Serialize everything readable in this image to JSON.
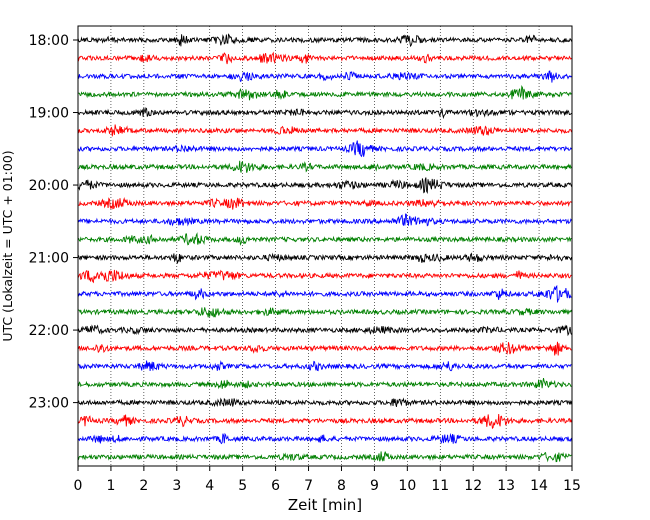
{
  "chart_data": {
    "type": "line",
    "chart_kind": "helicorder",
    "xlabel": "Zeit  [min]",
    "ylabel": "UTC (Lokalzeit = UTC + 01:00)",
    "xlim": [
      0,
      15
    ],
    "x_ticks": [
      0,
      1,
      2,
      3,
      4,
      5,
      6,
      7,
      8,
      9,
      10,
      11,
      12,
      13,
      14,
      15
    ],
    "x_tick_labels": [
      "0",
      "1",
      "2",
      "3",
      "4",
      "5",
      "6",
      "7",
      "8",
      "9",
      "10",
      "11",
      "12",
      "13",
      "14",
      "15"
    ],
    "y_ticks": [
      {
        "label": "18:00",
        "trace_index": 0
      },
      {
        "label": "19:00",
        "trace_index": 4
      },
      {
        "label": "20:00",
        "trace_index": 8
      },
      {
        "label": "21:00",
        "trace_index": 12
      },
      {
        "label": "22:00",
        "trace_index": 16
      },
      {
        "label": "23:00",
        "trace_index": 20
      }
    ],
    "grid": "vertical dotted",
    "trace_colors": [
      "#000000",
      "#ff0000",
      "#0000ff",
      "#008000"
    ],
    "traces": [
      {
        "start": "18:00",
        "color": "#000000"
      },
      {
        "start": "18:15",
        "color": "#ff0000"
      },
      {
        "start": "18:30",
        "color": "#0000ff"
      },
      {
        "start": "18:45",
        "color": "#008000"
      },
      {
        "start": "19:00",
        "color": "#000000"
      },
      {
        "start": "19:15",
        "color": "#ff0000"
      },
      {
        "start": "19:30",
        "color": "#0000ff"
      },
      {
        "start": "19:45",
        "color": "#008000"
      },
      {
        "start": "20:00",
        "color": "#000000"
      },
      {
        "start": "20:15",
        "color": "#ff0000"
      },
      {
        "start": "20:30",
        "color": "#0000ff"
      },
      {
        "start": "20:45",
        "color": "#008000"
      },
      {
        "start": "21:00",
        "color": "#000000"
      },
      {
        "start": "21:15",
        "color": "#ff0000"
      },
      {
        "start": "21:30",
        "color": "#0000ff"
      },
      {
        "start": "21:45",
        "color": "#008000"
      },
      {
        "start": "22:00",
        "color": "#000000"
      },
      {
        "start": "22:15",
        "color": "#ff0000"
      },
      {
        "start": "22:30",
        "color": "#0000ff"
      },
      {
        "start": "22:45",
        "color": "#008000"
      },
      {
        "start": "23:00",
        "color": "#000000"
      },
      {
        "start": "23:15",
        "color": "#ff0000"
      },
      {
        "start": "23:30",
        "color": "#0000ff"
      },
      {
        "start": "23:45",
        "color": "#008000"
      }
    ]
  }
}
